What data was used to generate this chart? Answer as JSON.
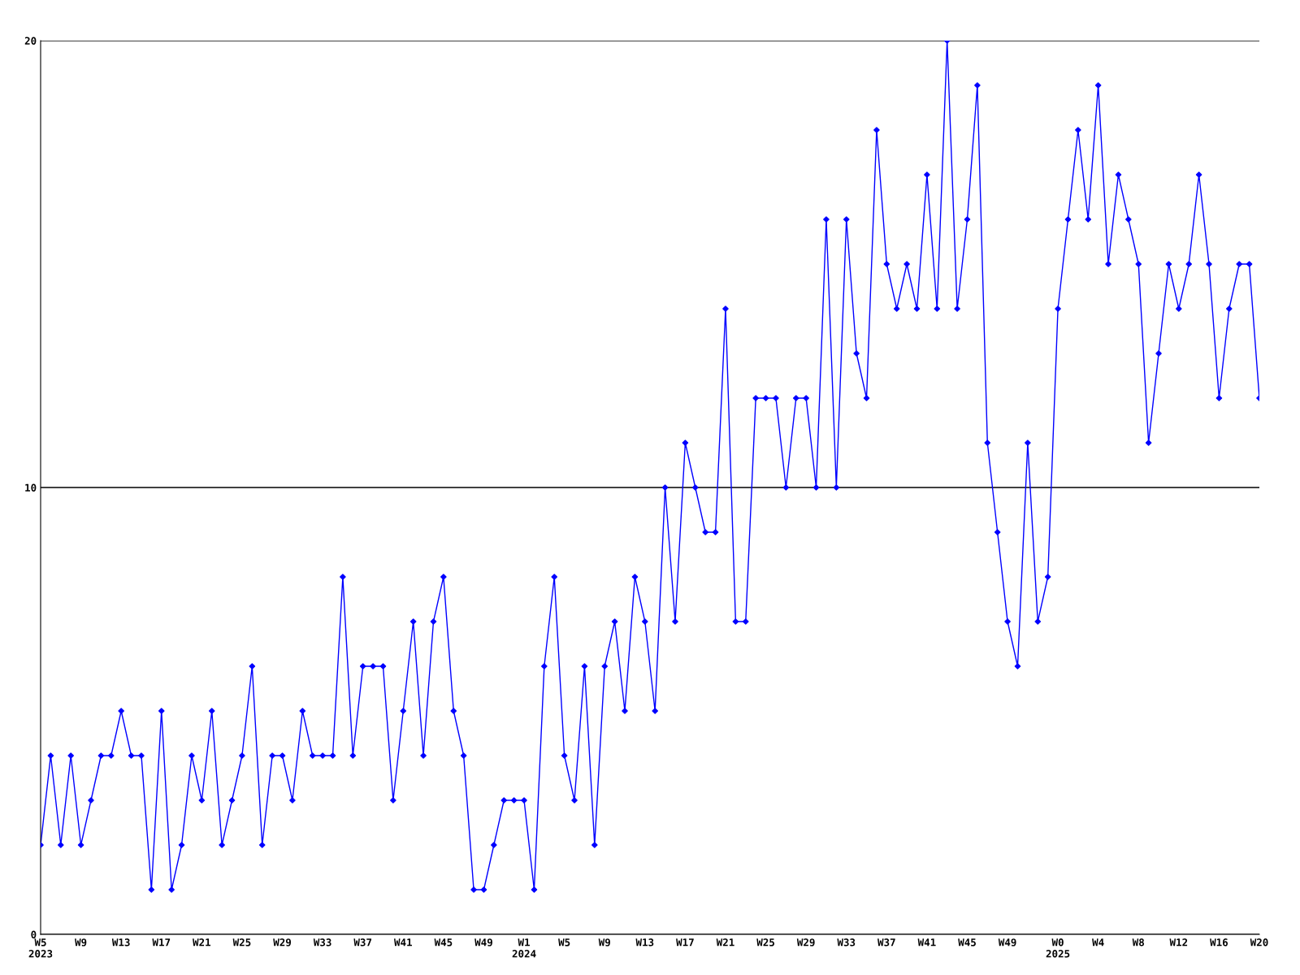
{
  "chart_data": {
    "type": "line",
    "categories": [
      "W5\n2023",
      null,
      null,
      null,
      "W9",
      null,
      null,
      null,
      "W13",
      null,
      null,
      null,
      "W17",
      null,
      null,
      null,
      "W21",
      null,
      null,
      null,
      "W25",
      null,
      null,
      null,
      "W29",
      null,
      null,
      null,
      "W33",
      null,
      null,
      null,
      "W37",
      null,
      null,
      null,
      "W41",
      null,
      null,
      null,
      "W45",
      null,
      null,
      null,
      "W49",
      null,
      null,
      null,
      "W1\n2024",
      null,
      null,
      null,
      "W5",
      null,
      null,
      null,
      "W9",
      null,
      null,
      null,
      "W13",
      null,
      null,
      null,
      "W17",
      null,
      null,
      null,
      "W21",
      null,
      null,
      null,
      "W25",
      null,
      null,
      null,
      "W29",
      null,
      null,
      null,
      "W33",
      null,
      null,
      null,
      "W37",
      null,
      null,
      null,
      "W41",
      null,
      null,
      null,
      "W45",
      null,
      null,
      null,
      "W49",
      null,
      null,
      null,
      null,
      "W0\n2025",
      null,
      null,
      null,
      "W4",
      null,
      null,
      null,
      "W8",
      null,
      null,
      null,
      "W12",
      null,
      null,
      null,
      "W16",
      null,
      null,
      null,
      "W20"
    ],
    "series": [
      {
        "color": "#0000ff",
        "values": [
          2,
          4,
          2,
          4,
          2,
          3,
          4,
          4,
          5,
          4,
          4,
          1,
          5,
          1,
          2,
          4,
          3,
          5,
          2,
          3,
          4,
          6,
          2,
          4,
          4,
          3,
          5,
          4,
          4,
          4,
          8,
          4,
          6,
          6,
          6,
          3,
          5,
          7,
          4,
          7,
          8,
          5,
          4,
          1,
          1,
          2,
          3,
          3,
          3,
          1,
          6,
          8,
          4,
          3,
          6,
          2,
          6,
          7,
          5,
          8,
          7,
          5,
          10,
          7,
          11,
          10,
          9,
          9,
          14,
          7,
          7,
          12,
          12,
          12,
          10,
          12,
          12,
          10,
          16,
          10,
          16,
          13,
          12,
          18,
          15,
          14,
          15,
          14,
          17,
          14,
          20,
          14,
          16,
          19,
          11,
          9,
          7,
          6,
          11,
          7,
          8,
          14,
          16,
          18,
          16,
          19,
          15,
          17,
          16,
          15,
          11,
          13,
          15,
          14,
          15,
          17,
          15,
          12,
          14,
          15,
          15,
          12
        ]
      }
    ],
    "ylim": [
      0,
      20
    ],
    "yticks": [
      0,
      10,
      20
    ],
    "grid": "y",
    "marker": "diamond",
    "line_style": "solid",
    "legend": false
  }
}
